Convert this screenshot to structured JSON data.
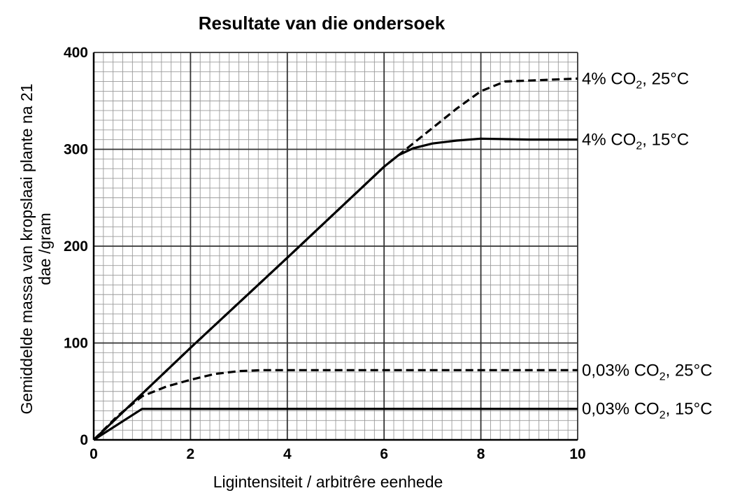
{
  "chart_data": {
    "type": "line",
    "title": "Resultate van die ondersoek",
    "xlabel": "Ligintensiteit / arbitrêre eenhede",
    "ylabel_line1": "Gemiddelde massa van kropslaai plante na 21",
    "ylabel_line2": "dae /gram",
    "xlim": [
      0,
      10
    ],
    "ylim": [
      0,
      400
    ],
    "x_ticks": [
      "0",
      "2",
      "4",
      "6",
      "8",
      "10"
    ],
    "y_ticks": [
      "0",
      "100",
      "200",
      "300",
      "400"
    ],
    "grid": true,
    "series": [
      {
        "label_prefix": "4% CO",
        "label_sub": "2",
        "label_suffix": ", 25°C",
        "style": "dashed",
        "points": [
          [
            0,
            0
          ],
          [
            2,
            95
          ],
          [
            4,
            188
          ],
          [
            6,
            282
          ],
          [
            6.5,
            302
          ],
          [
            7,
            322
          ],
          [
            7.5,
            342
          ],
          [
            8,
            360
          ],
          [
            8.5,
            370
          ],
          [
            9,
            371
          ],
          [
            10,
            373
          ]
        ]
      },
      {
        "label_prefix": "4% CO",
        "label_sub": "2",
        "label_suffix": ", 15°C",
        "style": "solid",
        "points": [
          [
            0,
            0
          ],
          [
            2,
            95
          ],
          [
            4,
            188
          ],
          [
            6,
            282
          ],
          [
            6.3,
            294
          ],
          [
            6.6,
            301
          ],
          [
            7,
            306
          ],
          [
            7.5,
            309
          ],
          [
            8,
            311
          ],
          [
            9,
            310
          ],
          [
            10,
            310
          ]
        ]
      },
      {
        "label_prefix": "0,03% CO",
        "label_sub": "2",
        "label_suffix": ", 25°C",
        "style": "dashed",
        "points": [
          [
            0,
            0
          ],
          [
            0.5,
            25
          ],
          [
            1,
            45
          ],
          [
            1.5,
            55
          ],
          [
            2,
            62
          ],
          [
            2.5,
            68
          ],
          [
            3,
            71
          ],
          [
            3.5,
            72
          ],
          [
            10,
            72
          ]
        ]
      },
      {
        "label_prefix": "0,03% CO",
        "label_sub": "2",
        "label_suffix": ", 15°C",
        "style": "solid",
        "points": [
          [
            0,
            0
          ],
          [
            1,
            32
          ],
          [
            10,
            32
          ]
        ]
      }
    ]
  }
}
